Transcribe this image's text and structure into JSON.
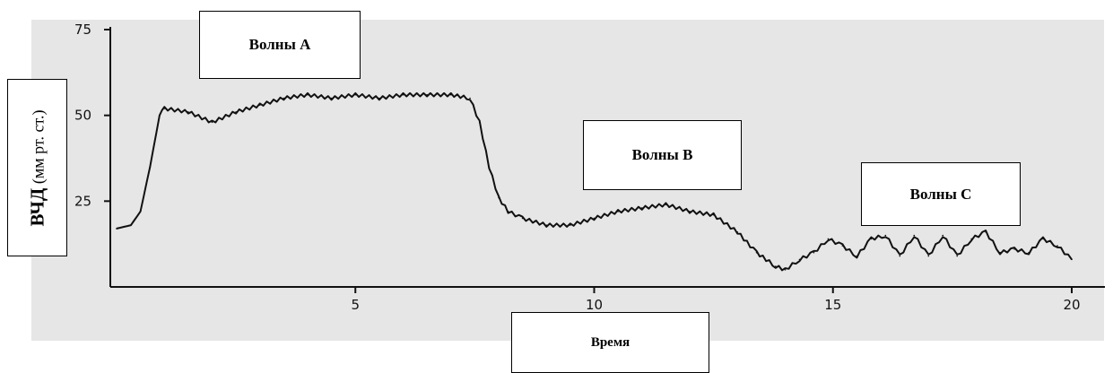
{
  "chart_data": {
    "type": "line",
    "xlabel": "Время",
    "ylabel_main": "ВЧД",
    "ylabel_unit": "(мм рт. ст.)",
    "xlim": [
      0,
      20
    ],
    "ylim": [
      0,
      75
    ],
    "xticks": [
      5,
      10,
      15,
      20
    ],
    "yticks": [
      25,
      50,
      75
    ],
    "grid": false,
    "background": "#e6e6e6",
    "line_color": "#111111",
    "annotations": [
      {
        "id": "a",
        "text": "Волны A"
      },
      {
        "id": "b",
        "text": "Волны B"
      },
      {
        "id": "c",
        "text": "Волны C"
      }
    ],
    "series": [
      {
        "x": [
          0,
          0.3,
          0.5,
          0.7,
          0.9,
          1.0,
          1.5,
          2.0,
          2.5,
          3.0,
          3.5,
          4.0,
          4.5,
          5.0,
          5.5,
          6.0,
          6.5,
          7.0,
          7.4,
          7.6,
          7.8,
          8.0,
          8.2,
          8.5,
          9.0,
          9.5,
          10.0,
          10.5,
          11.0,
          11.5,
          12.0,
          12.5,
          13.0,
          13.4,
          13.8,
          14.0,
          14.3,
          14.6,
          14.9,
          15.2,
          15.5,
          15.8,
          16.1,
          16.4,
          16.7,
          17.0,
          17.3,
          17.6,
          17.9,
          18.2,
          18.5,
          18.8,
          19.1,
          19.4,
          19.7,
          20.0
        ],
        "y": [
          17,
          18,
          22,
          35,
          50,
          52,
          51,
          48,
          51,
          53,
          55,
          56,
          55,
          56,
          55,
          56,
          56,
          56,
          55,
          48,
          35,
          26,
          22,
          20,
          18,
          18,
          20,
          22,
          23,
          24,
          22,
          21,
          16,
          10,
          6,
          5,
          8,
          10,
          14,
          12,
          9,
          14,
          15,
          9,
          15,
          9,
          15,
          9,
          14,
          16,
          10,
          11,
          10,
          14,
          12,
          8
        ]
      }
    ]
  }
}
